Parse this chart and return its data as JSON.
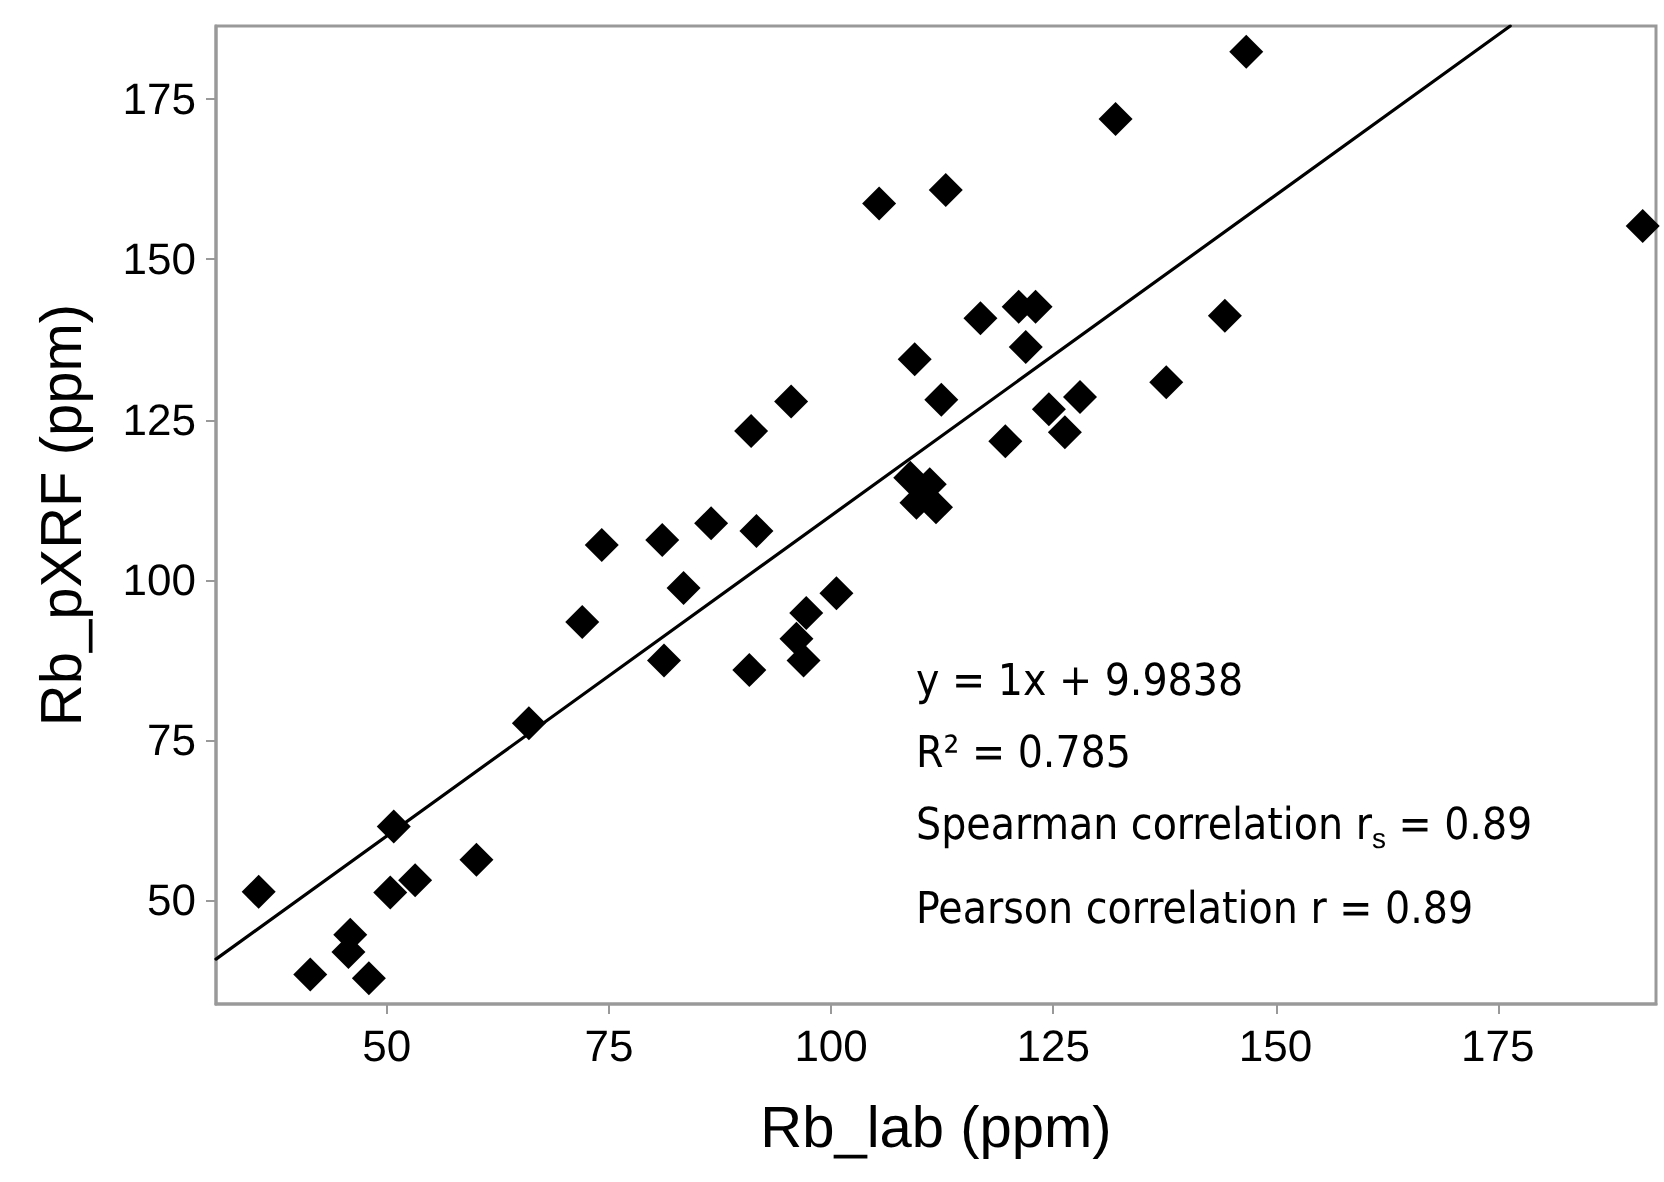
{
  "chart_data": {
    "type": "scatter",
    "xlabel": "Rb_lab (ppm)",
    "ylabel": "Rb_pXRF (ppm)",
    "xlim": [
      30.8,
      192.8
    ],
    "ylim": [
      33.8,
      186.4
    ],
    "xticks": [
      50,
      75,
      100,
      125,
      150,
      175
    ],
    "yticks": [
      50,
      75,
      100,
      125,
      150,
      175
    ],
    "grid": false,
    "marker": "diamond",
    "series": [
      {
        "color": "#000000",
        "x": [
          35.6,
          41.4,
          45.9,
          45.7,
          48.0,
          50.8,
          50.4,
          53.2,
          60.1,
          66.0,
          72.0,
          81.2,
          83.4,
          90.8,
          96.1,
          96.9,
          97.2,
          100.6,
          74.2,
          81.0,
          86.5,
          91.6,
          91.0,
          95.5,
          146.7,
          132.0,
          105.4,
          112.9,
          191.3,
          144.3,
          116.8,
          121.1,
          123.0,
          121.9,
          109.4,
          112.4,
          137.7,
          128.0,
          124.5,
          126.3,
          119.6,
          108.9,
          111.1,
          109.6,
          111.8
        ],
        "values": [
          51.3,
          38.4,
          44.6,
          41.9,
          37.8,
          61.5,
          51.2,
          53.1,
          56.3,
          77.6,
          93.4,
          87.4,
          98.7,
          85.9,
          90.8,
          87.4,
          94.8,
          97.9,
          105.4,
          106.2,
          108.8,
          107.6,
          123.2,
          127.8,
          182.4,
          171.9,
          158.7,
          160.8,
          155.2,
          141.2,
          140.8,
          142.6,
          142.6,
          136.3,
          134.4,
          128.1,
          130.8,
          128.5,
          126.6,
          123.0,
          121.6,
          115.9,
          114.9,
          112.0,
          111.3
        ]
      },
      {
        "type": "line",
        "color": "#000000",
        "marker": "none",
        "line_style": "solid",
        "x": [
          30.8,
          176.4
        ],
        "values": [
          40.8,
          186.4
        ]
      }
    ],
    "annotations": [
      "y = 1x + 9.9838",
      "R² = 0.785",
      "Spearman correlation r$_{s}$ = 0.89",
      "Pearson correlation r = 0.89"
    ]
  }
}
